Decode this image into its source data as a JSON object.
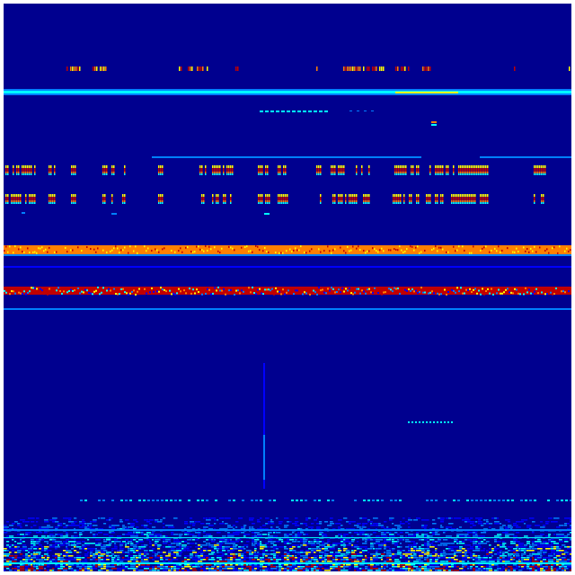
{
  "image": {
    "kind": "spectrogram-heatmap",
    "colormap": "jet",
    "colors": {
      "background": "#00008f",
      "low": "#0000ff",
      "mid_low": "#0080ff",
      "mid": "#00ffff",
      "mid_high": "#ffff00",
      "high": "#ff8000",
      "peak": "#c00000",
      "frame": "#ffffff"
    }
  }
}
